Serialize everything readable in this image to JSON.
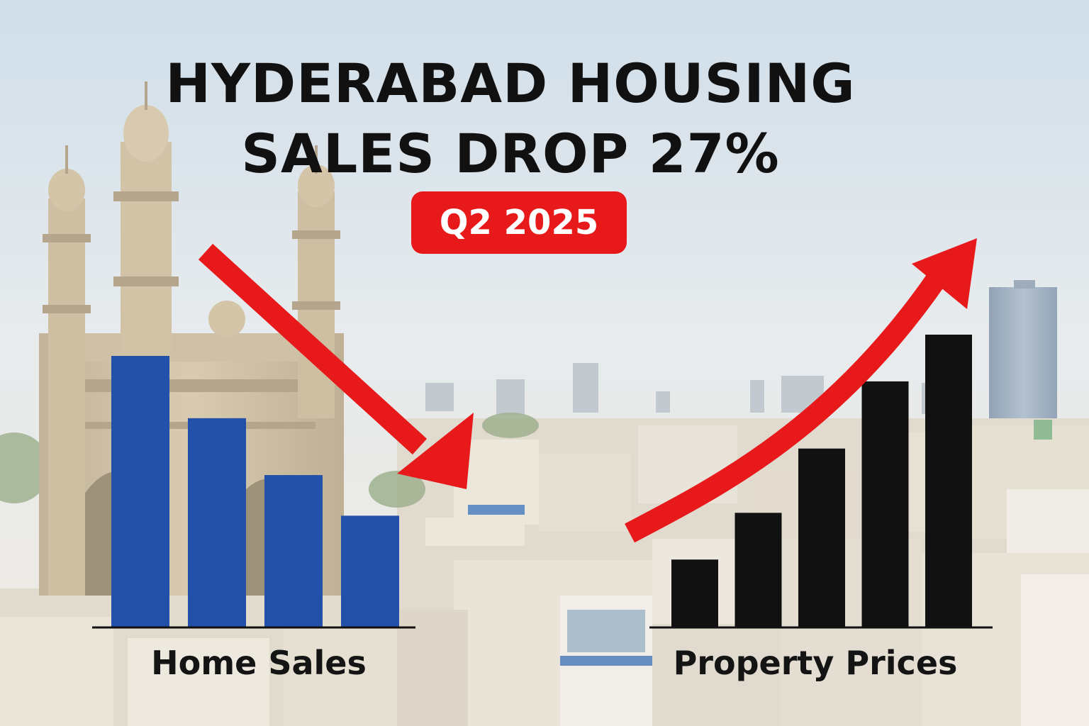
{
  "headline": {
    "line1": "HYDERABAD HOUSING",
    "line2": "SALES DROP 27%",
    "badge": "Q2 2025",
    "badge_color": "#e8191b"
  },
  "chart_data": [
    {
      "type": "bar",
      "xlabel": "Home Sales",
      "trend": "down",
      "bar_color": "#2350a8",
      "values": [
        100,
        77,
        56,
        41
      ],
      "ylim": [
        0,
        100
      ],
      "grid": false
    },
    {
      "type": "bar",
      "xlabel": "Property Prices",
      "trend": "up",
      "bar_color": "#111111",
      "values": [
        23,
        39,
        61,
        84,
        100
      ],
      "ylim": [
        0,
        100
      ],
      "grid": false
    }
  ],
  "arrows": {
    "down_arrow_color": "#e8191b",
    "up_arrow_color": "#e8191b"
  }
}
